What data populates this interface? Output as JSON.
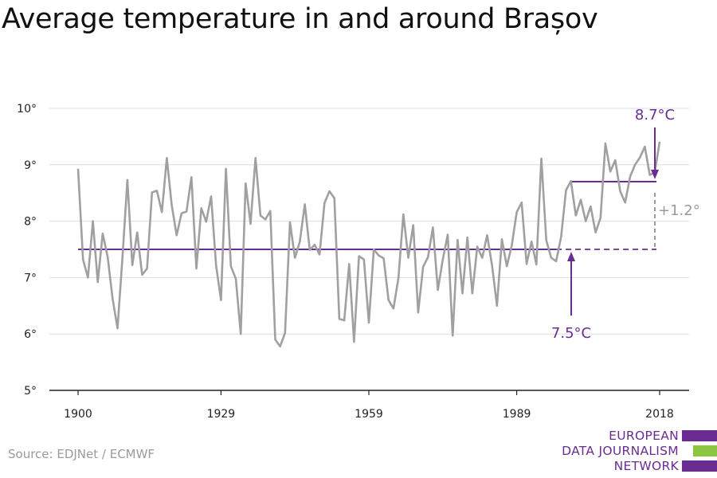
{
  "title": "Average temperature in and around Brașov",
  "source": "Source: EDJNet / ECMWF",
  "logo": {
    "lines": [
      "EUROPEAN",
      "DATA JOURNALISM",
      "NETWORK"
    ],
    "colors": [
      "#6a2c91",
      "#8cc63f",
      "#6a2c91"
    ]
  },
  "colors": {
    "series": "#a0a0a0",
    "accent": "#6a2c91",
    "grid": "#dddddd",
    "axis": "#222222"
  },
  "chart_data": {
    "type": "line",
    "ylim": [
      5,
      10
    ],
    "xlim": [
      1900,
      2018
    ],
    "yticks": [
      5,
      6,
      7,
      8,
      9,
      10
    ],
    "ytick_labels": [
      "5°",
      "6°",
      "7°",
      "8°",
      "9°",
      "10°"
    ],
    "xticks": [
      1900,
      1929,
      1959,
      1989,
      2018
    ],
    "xtick_labels": [
      "1900",
      "1929",
      "1959",
      "1989",
      "2018"
    ],
    "grid": true,
    "series": [
      {
        "x": [
          1900,
          1901,
          1902,
          1903,
          1904,
          1905,
          1906,
          1907,
          1908,
          1909,
          1910,
          1911,
          1912,
          1913,
          1914,
          1915,
          1916,
          1917,
          1918,
          1919,
          1920,
          1921,
          1922,
          1923,
          1924,
          1925,
          1926,
          1927,
          1928,
          1929,
          1930,
          1931,
          1932,
          1933,
          1934,
          1935,
          1936,
          1937,
          1938,
          1939,
          1940,
          1941,
          1942,
          1943,
          1944,
          1945,
          1946,
          1947,
          1948,
          1949,
          1950,
          1951,
          1952,
          1953,
          1954,
          1955,
          1956,
          1957,
          1958,
          1959,
          1960,
          1961,
          1962,
          1963,
          1964,
          1965,
          1966,
          1967,
          1968,
          1969,
          1970,
          1971,
          1972,
          1973,
          1974,
          1975,
          1976,
          1977,
          1978,
          1979,
          1980,
          1981,
          1982,
          1983,
          1984,
          1985,
          1986,
          1987,
          1988,
          1989,
          1990,
          1991,
          1992,
          1993,
          1994,
          1995,
          1996,
          1997,
          1998,
          1999,
          2000,
          2001,
          2002,
          2003,
          2004,
          2005,
          2006,
          2007,
          2008,
          2009,
          2010,
          2011,
          2012,
          2013,
          2014,
          2015,
          2016,
          2017,
          2018
        ],
        "values": [
          8.93,
          7.32,
          7.0,
          8.0,
          6.92,
          7.78,
          7.37,
          6.63,
          6.1,
          7.35,
          8.73,
          7.22,
          7.8,
          7.05,
          7.16,
          8.51,
          8.54,
          8.16,
          9.12,
          8.29,
          7.75,
          8.14,
          8.17,
          8.78,
          7.16,
          8.23,
          7.99,
          8.44,
          7.22,
          6.6,
          8.93,
          7.2,
          6.98,
          6.0,
          8.67,
          7.95,
          9.12,
          8.1,
          8.03,
          8.18,
          5.9,
          5.78,
          6.02,
          7.98,
          7.35,
          7.64,
          8.3,
          7.49,
          7.58,
          7.41,
          8.32,
          8.53,
          8.41,
          6.27,
          6.24,
          7.24,
          5.86,
          7.38,
          7.32,
          6.2,
          7.5,
          7.39,
          7.34,
          6.6,
          6.45,
          6.99,
          8.12,
          7.35,
          7.93,
          6.38,
          7.19,
          7.36,
          7.89,
          6.78,
          7.32,
          7.76,
          5.97,
          7.67,
          6.72,
          7.71,
          6.72,
          7.55,
          7.35,
          7.75,
          7.21,
          6.5,
          7.68,
          7.2,
          7.57,
          8.16,
          8.33,
          7.24,
          7.64,
          7.23,
          9.11,
          7.66,
          7.35,
          7.29,
          7.72,
          8.55,
          8.71,
          8.1,
          8.38,
          8.0,
          8.26,
          7.8,
          8.06,
          9.38,
          8.88,
          9.08,
          8.53,
          8.33,
          8.79,
          9.0,
          9.13,
          9.32,
          8.82,
          8.86,
          9.41
        ]
      }
    ],
    "reference_lines": [
      {
        "value": 7.5,
        "x_from": 1900,
        "x_to": 2018,
        "style": "solid then dashed",
        "label": "7.5°C"
      },
      {
        "value": 8.7,
        "x_from": 2000,
        "x_to": 2018,
        "label": "8.7°C"
      }
    ],
    "annotations": {
      "baseline": "7.5°C",
      "recent": "8.7°C",
      "difference": "+1.2°"
    }
  }
}
